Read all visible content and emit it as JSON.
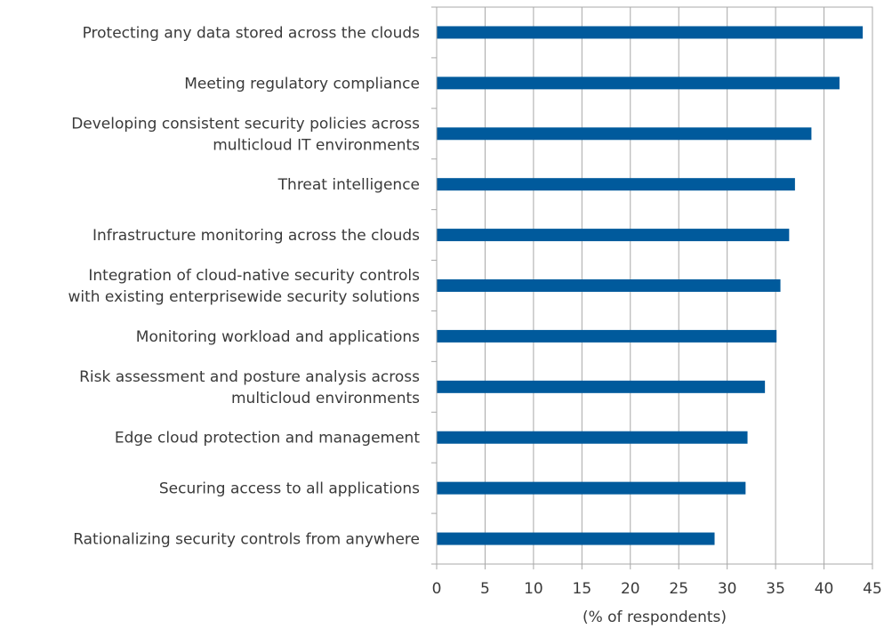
{
  "chart_data": {
    "type": "bar",
    "orientation": "horizontal",
    "title": "",
    "xlabel": "(% of respondents)",
    "ylabel": "",
    "xlim": [
      0,
      45
    ],
    "xticks": [
      0,
      5,
      10,
      15,
      20,
      25,
      30,
      35,
      40,
      45
    ],
    "grid": true,
    "bar_color": "#005a9c",
    "categories": [
      [
        "Protecting any data stored across the clouds"
      ],
      [
        "Meeting regulatory compliance"
      ],
      [
        "Developing consistent security policies across",
        "multicloud IT environments"
      ],
      [
        "Threat intelligence"
      ],
      [
        "Infrastructure monitoring across the clouds"
      ],
      [
        "Integration of cloud-native security controls",
        "with existing enterprisewide security solutions"
      ],
      [
        "Monitoring workload and applications"
      ],
      [
        "Risk assessment and posture analysis across",
        "multicloud environments"
      ],
      [
        "Edge cloud protection and management"
      ],
      [
        "Securing access to all applications"
      ],
      [
        "Rationalizing security controls from anywhere"
      ]
    ],
    "values": [
      44.0,
      41.6,
      38.7,
      37.0,
      36.4,
      35.5,
      35.1,
      33.9,
      32.1,
      31.9,
      28.7
    ]
  }
}
